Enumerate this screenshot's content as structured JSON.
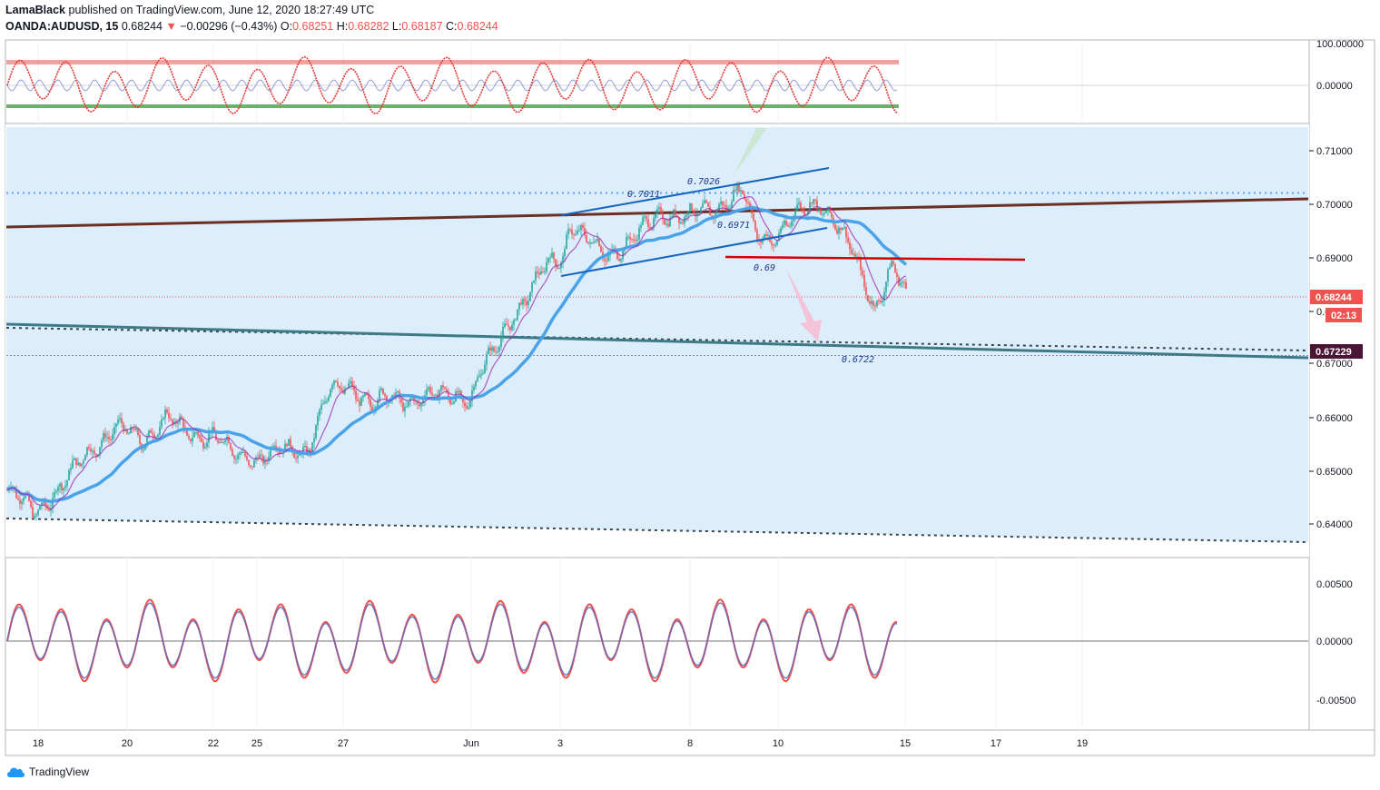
{
  "header": {
    "author": "LamaBlack",
    "published": "published on TradingView.com, June 12, 2020 18:27:49 UTC",
    "symbol": "OANDA:AUDUSD, 15",
    "last": "0.68244",
    "change": "−0.00296 (−0.43%)",
    "o_label": "O:",
    "o_value": "0.68251",
    "h_label": "H:",
    "h_value": "0.68282",
    "l_label": "L:",
    "l_value": "0.68187",
    "c_label": "C:",
    "c_value": "0.68244"
  },
  "footer": {
    "brand": "TradingView"
  },
  "colors": {
    "up": "#26a69a",
    "down": "#ef5350",
    "ma_fast": "#9c27b0",
    "ma_slow": "#4aa3e8",
    "band": "#d6eafb",
    "accent_red": "#d50000",
    "accent_blue": "#1565c0"
  },
  "price_axis": {
    "ticks": [
      "0.71000",
      "0.70000",
      "0.69000",
      "0.68000",
      "0.67000",
      "0.66000",
      "0.65000",
      "0.64000"
    ],
    "current_price_badge": "0.68244",
    "countdown_badge": "02:13",
    "level_badge": "0.67229"
  },
  "oscillator_top": {
    "ticks": [
      "100.00000",
      "0.00000"
    ]
  },
  "oscillator_bottom": {
    "ticks": [
      "0.00500",
      "0.00000",
      "-0.00500"
    ]
  },
  "time_axis": {
    "labels": [
      "18",
      "20",
      "22",
      "25",
      "27",
      "Jun",
      "3",
      "8",
      "10",
      "15",
      "17",
      "19"
    ]
  },
  "annotations": [
    "0.7026",
    "0.7011",
    "0.6971",
    "0.69",
    "0.6722"
  ],
  "chart_data": {
    "type": "candlestick",
    "instrument": "OANDA:AUDUSD",
    "interval": "15",
    "ylim": [
      0.636,
      0.7125
    ],
    "key_levels": [
      0.7011,
      0.69,
      0.6722
    ],
    "path_x": [
      0,
      30,
      60,
      90,
      120,
      150,
      175,
      200,
      225,
      250,
      275,
      300,
      330,
      355,
      380,
      400,
      420,
      445,
      470,
      495,
      510,
      520,
      535,
      555,
      575,
      595,
      612,
      620,
      635,
      660,
      690,
      720,
      750,
      780,
      810,
      825,
      845,
      870,
      893,
      910,
      930,
      955,
      975,
      990
    ],
    "path_close": [
      0.6465,
      0.6425,
      0.647,
      0.654,
      0.658,
      0.656,
      0.66,
      0.6568,
      0.657,
      0.653,
      0.6525,
      0.6538,
      0.654,
      0.665,
      0.666,
      0.6625,
      0.6635,
      0.6635,
      0.664,
      0.6645,
      0.6635,
      0.668,
      0.672,
      0.679,
      0.683,
      0.689,
      0.6905,
      0.6965,
      0.6935,
      0.6905,
      0.6935,
      0.6985,
      0.6975,
      0.6995,
      0.7025,
      0.694,
      0.694,
      0.698,
      0.7005,
      0.6975,
      0.691,
      0.6808,
      0.6885,
      0.6823
    ],
    "top_oscillator_range": [
      -100,
      100
    ],
    "bottom_oscillator_range": [
      -0.0065,
      0.0065
    ]
  }
}
